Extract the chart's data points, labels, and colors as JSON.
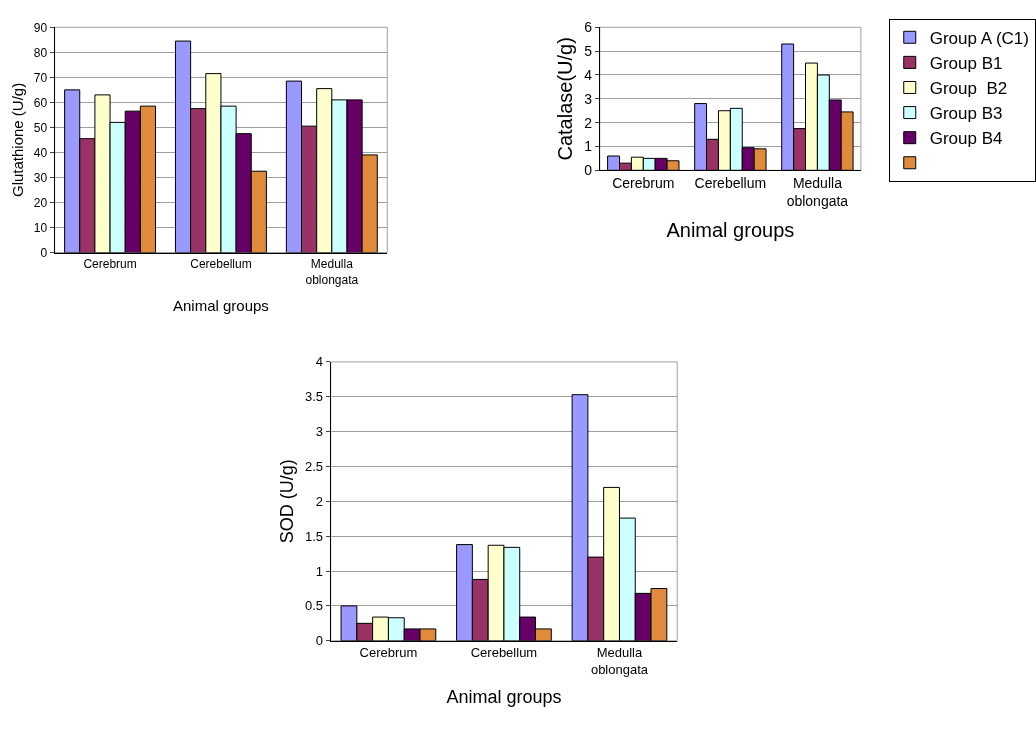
{
  "chart_data": [
    {
      "type": "bar",
      "xlabel": "Animal groups",
      "ylabel": "Glutathione (U/g)",
      "categories": [
        "Cerebrum",
        "Cerebellum",
        "Medulla oblongata"
      ],
      "ylim": [
        0,
        90
      ],
      "yticks": [
        0,
        10,
        20,
        30,
        40,
        50,
        60,
        70,
        80,
        90
      ],
      "grid": "y",
      "series": [
        {
          "color": "#9999ff",
          "values": [
            65,
            84.5,
            68.5
          ]
        },
        {
          "color": "#993366",
          "values": [
            45.5,
            57.5,
            50.5
          ]
        },
        {
          "color": "#ffffcc",
          "values": [
            63,
            71.5,
            65.5
          ]
        },
        {
          "color": "#ccffff",
          "values": [
            52,
            58.5,
            61
          ]
        },
        {
          "color": "#660066",
          "values": [
            56.5,
            47.5,
            61
          ]
        },
        {
          "color": "#e08a3c",
          "values": [
            58.5,
            32.5,
            39
          ]
        }
      ]
    },
    {
      "type": "bar",
      "xlabel": "Animal groups",
      "ylabel": "Catalase(U/g)",
      "categories": [
        "Cerebrum",
        "Cerebellum",
        "Medulla oblongata"
      ],
      "ylim": [
        0,
        6
      ],
      "yticks": [
        0,
        1,
        2,
        3,
        4,
        5,
        6
      ],
      "grid": "y",
      "legend": "right",
      "series": [
        {
          "name": "Group A (C1)",
          "color": "#9999ff",
          "values": [
            0.6,
            2.8,
            5.3
          ]
        },
        {
          "name": "Group B1",
          "color": "#993366",
          "values": [
            0.3,
            1.3,
            1.75
          ]
        },
        {
          "name": "Group  B2",
          "color": "#ffffcc",
          "values": [
            0.55,
            2.5,
            4.5
          ]
        },
        {
          "name": "Group B3",
          "color": "#ccffff",
          "values": [
            0.5,
            2.6,
            4.0
          ]
        },
        {
          "name": "Group B4",
          "color": "#660066",
          "values": [
            0.5,
            0.95,
            2.95
          ]
        },
        {
          "color": "#e08a3c",
          "values": [
            0.4,
            0.9,
            2.45
          ]
        }
      ]
    },
    {
      "type": "bar",
      "xlabel": "Animal groups",
      "ylabel": "SOD (U/g)",
      "categories": [
        "Cerebrum",
        "Cerebellum",
        "Medulla oblongata"
      ],
      "ylim": [
        0,
        4
      ],
      "yticks": [
        0,
        0.5,
        1,
        1.5,
        2,
        2.5,
        3,
        3.5,
        4
      ],
      "grid": "y",
      "series": [
        {
          "color": "#9999ff",
          "values": [
            0.5,
            1.38,
            3.53
          ]
        },
        {
          "color": "#993366",
          "values": [
            0.25,
            0.88,
            1.2
          ]
        },
        {
          "color": "#ffffcc",
          "values": [
            0.34,
            1.37,
            2.2
          ]
        },
        {
          "color": "#ccffff",
          "values": [
            0.33,
            1.34,
            1.76
          ]
        },
        {
          "color": "#660066",
          "values": [
            0.17,
            0.34,
            0.68
          ]
        },
        {
          "color": "#e08a3c",
          "values": [
            0.17,
            0.17,
            0.75
          ]
        }
      ]
    }
  ]
}
